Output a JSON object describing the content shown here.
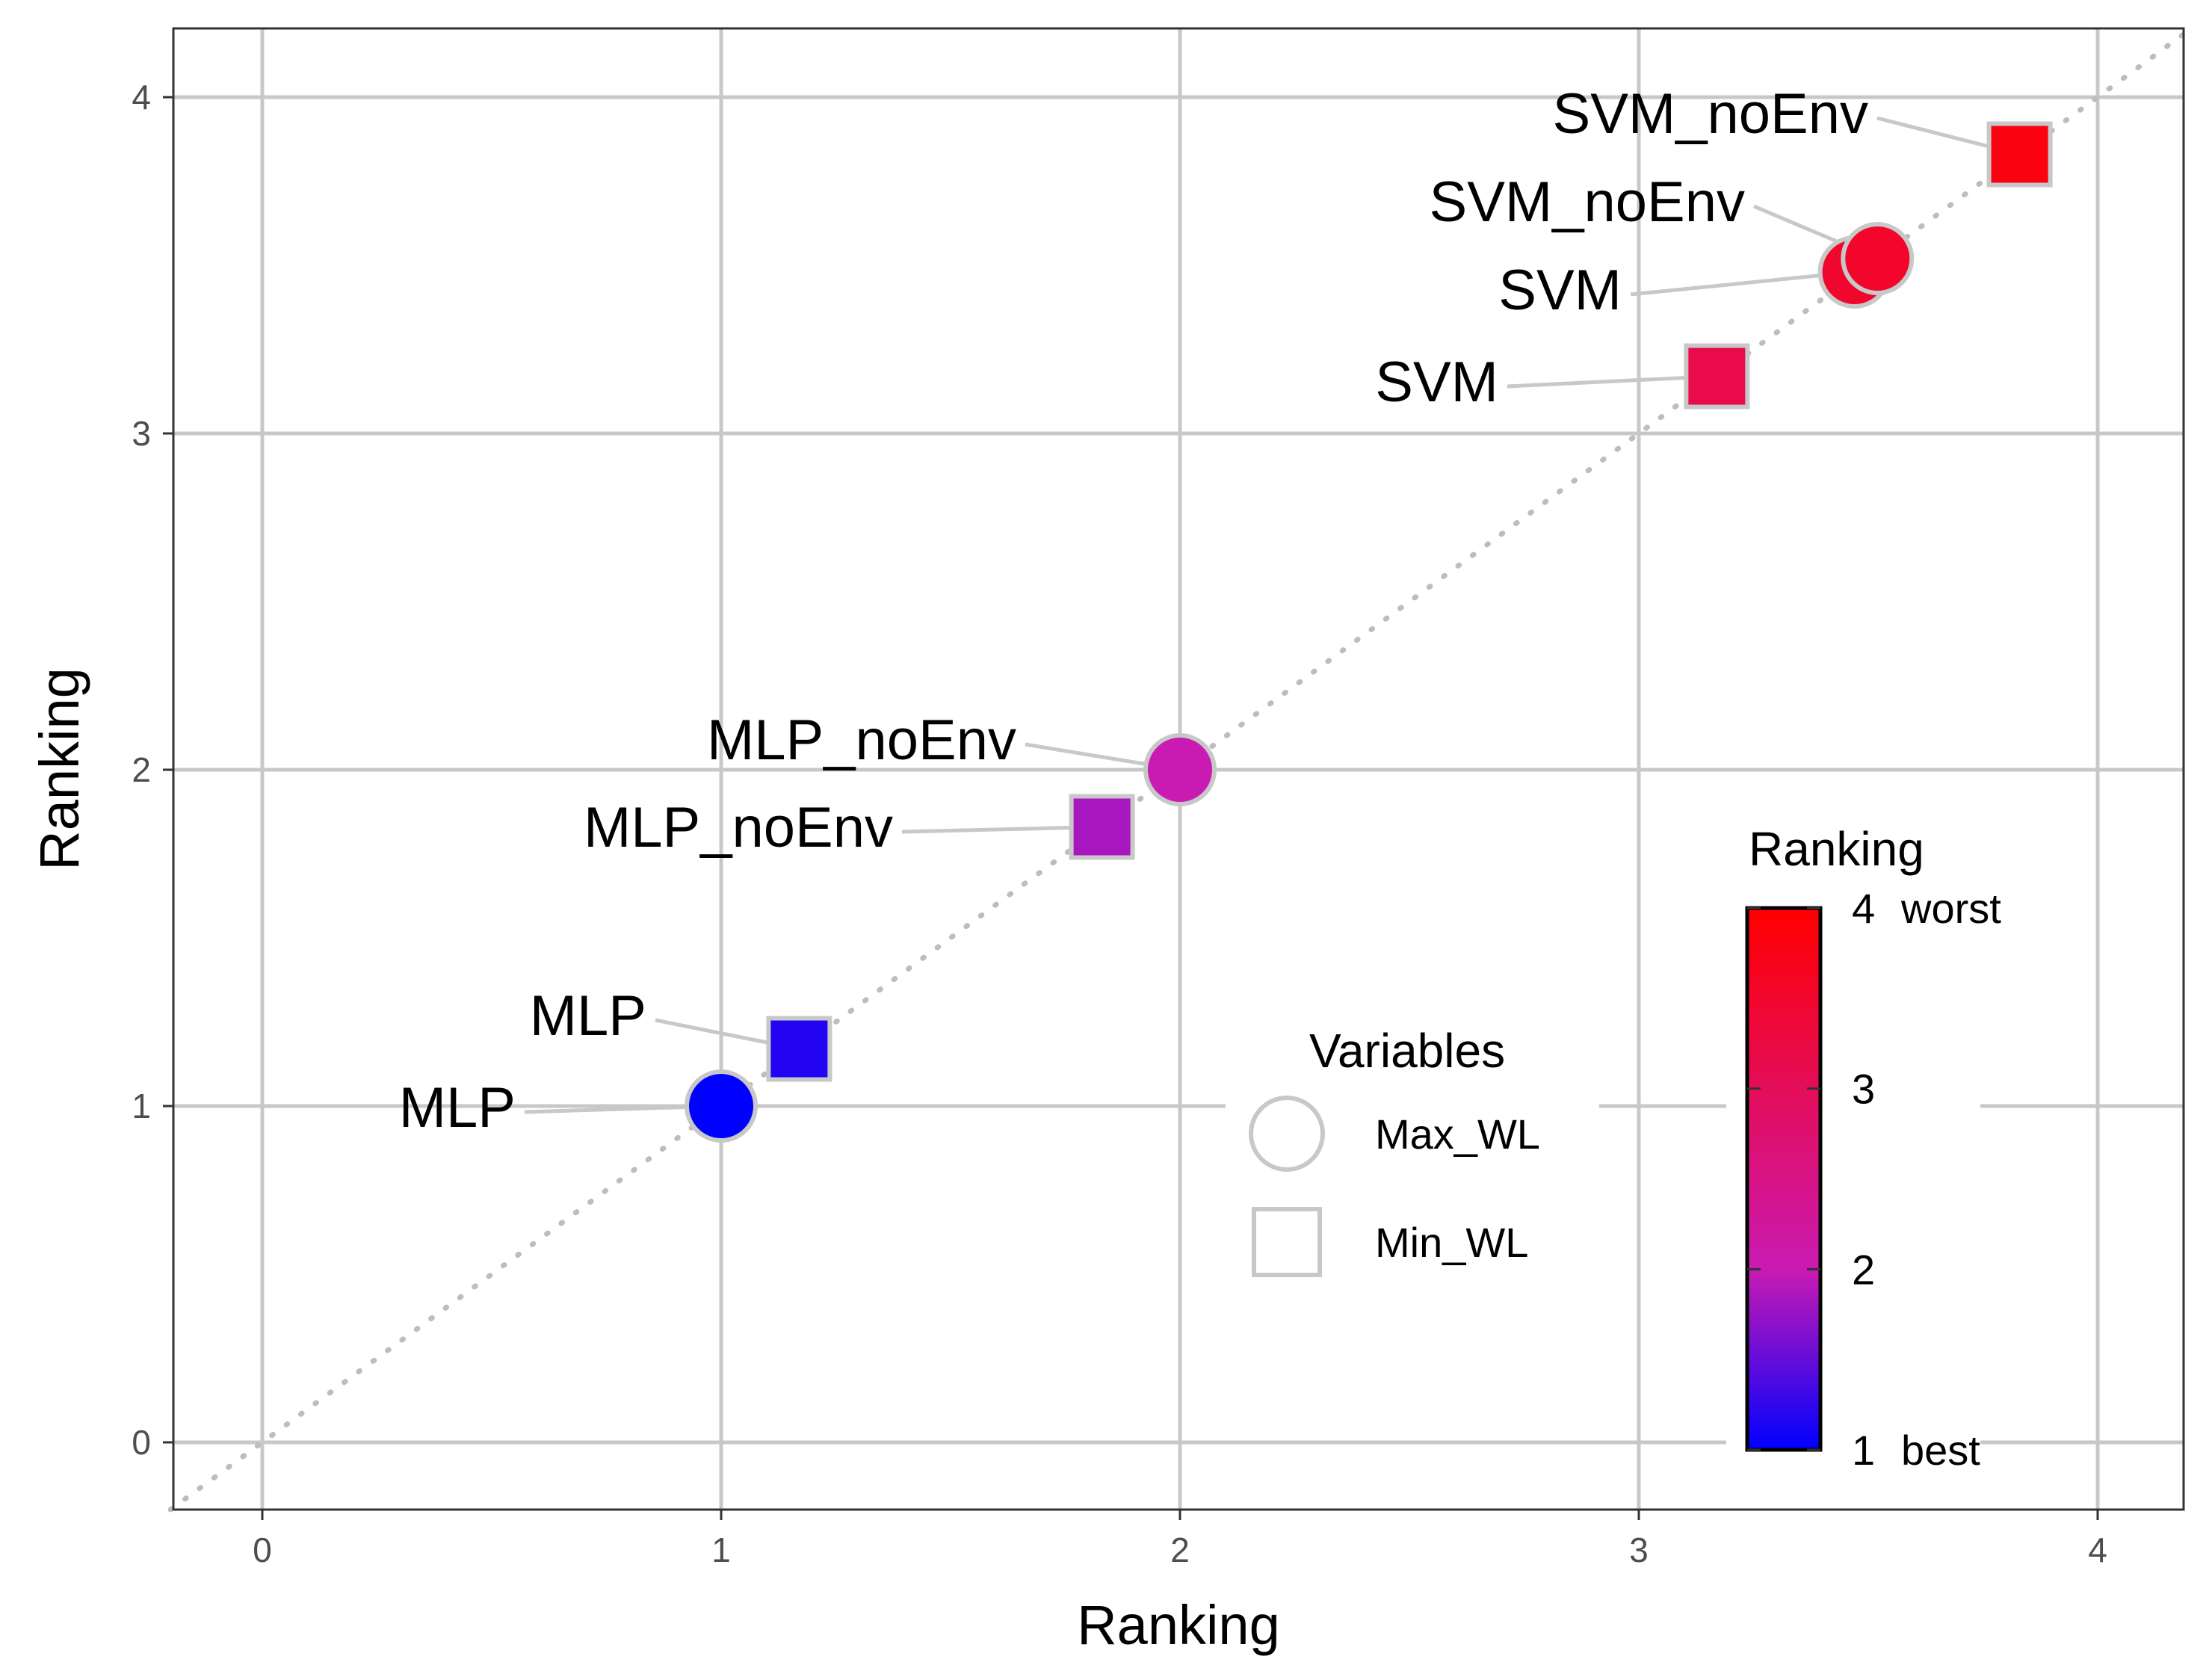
{
  "chart_data": {
    "type": "scatter",
    "xlabel": "Ranking",
    "ylabel": "Ranking",
    "xlim": [
      -0.2,
      4.2
    ],
    "ylim": [
      -0.2,
      4.2
    ],
    "x_ticks": [
      "0",
      "1",
      "2",
      "3",
      "4"
    ],
    "y_ticks": [
      "0",
      "1",
      "2",
      "3",
      "4"
    ],
    "grid": true,
    "reference_line": "dotted y = x",
    "points": [
      {
        "label": "MLP",
        "shape": "circle",
        "x": 1.0,
        "y": 1.0,
        "ranking": 1.0
      },
      {
        "label": "MLP",
        "shape": "square",
        "x": 1.17,
        "y": 1.17,
        "ranking": 1.17
      },
      {
        "label": "MLP_noEnv",
        "shape": "square",
        "x": 1.83,
        "y": 1.83,
        "ranking": 1.83
      },
      {
        "label": "MLP_noEnv",
        "shape": "circle",
        "x": 2.0,
        "y": 2.0,
        "ranking": 2.0
      },
      {
        "label": "SVM",
        "shape": "square",
        "x": 3.17,
        "y": 3.17,
        "ranking": 3.17
      },
      {
        "label": "SVM",
        "shape": "circle",
        "x": 3.47,
        "y": 3.48,
        "ranking": 3.48
      },
      {
        "label": "SVM_noEnv",
        "shape": "circle",
        "x": 3.52,
        "y": 3.52,
        "ranking": 3.52
      },
      {
        "label": "SVM_noEnv",
        "shape": "square",
        "x": 3.83,
        "y": 3.83,
        "ranking": 3.83
      }
    ],
    "shape_legend": {
      "title": "Variables",
      "items": [
        {
          "label": "Max_WL",
          "shape": "circle"
        },
        {
          "label": "Min_WL",
          "shape": "square"
        }
      ]
    },
    "color_legend": {
      "title": "Ranking",
      "range": [
        1,
        4
      ],
      "low_color": "#0000ff",
      "mid_color": "#c91ab2",
      "high_color": "#ff0000",
      "ticks": [
        "4",
        "3",
        "2",
        "1"
      ],
      "end_notes": {
        "high": "worst",
        "low": "best"
      },
      "placement": "bottom-right"
    }
  }
}
